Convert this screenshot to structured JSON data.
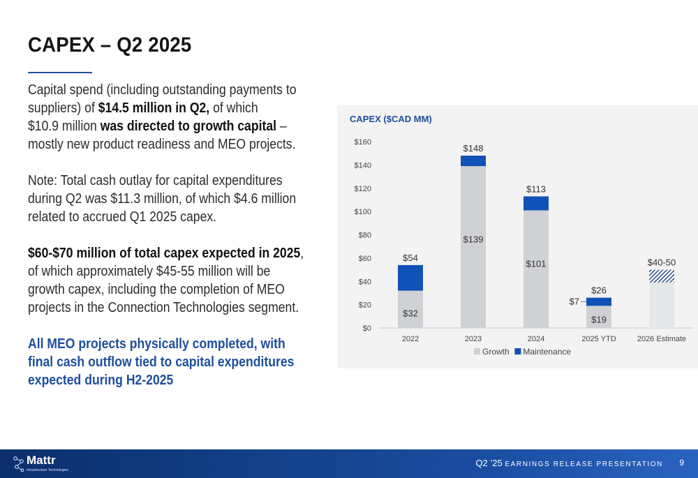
{
  "slide": {
    "title": "CAPEX – Q2 2025",
    "para1": {
      "a": "Capital spend (including outstanding payments to",
      "b": "suppliers) of ",
      "b_bold": "$14.5 million in Q2,",
      "b_end": " of which",
      "c": "$10.9 million ",
      "c_bold": "was directed to growth capital",
      "c_end": " –",
      "d": "mostly new product readiness and MEO projects."
    },
    "para2": [
      "Note: Total cash outlay for capital expenditures",
      "during Q2 was $11.3 million, of which $4.6 million",
      "related to accrued Q1 2025 capex."
    ],
    "para3": {
      "a_bold": "$60-$70 million of total capex expected in 2025",
      "a_end": ",",
      "rest": [
        "of which approximately $45-55 million will be",
        "growth capex, including the completion of MEO",
        "projects in the Connection Technologies segment."
      ]
    },
    "para4": [
      "All MEO projects physically completed, with",
      "final cash outflow tied to capital expenditures",
      "expected during H2-2025"
    ]
  },
  "chart_data": {
    "type": "bar",
    "stacked": true,
    "title": "CAPEX ($CAD MM)",
    "categories": [
      "2022",
      "2023",
      "2024",
      "2025 YTD",
      "2026 Estimate"
    ],
    "series": [
      {
        "name": "Growth",
        "color": "#cfd1d4",
        "values": [
          32,
          139,
          101,
          19,
          39
        ]
      },
      {
        "name": "Maintenance",
        "color": "#1152b8",
        "values": [
          22,
          9,
          12,
          7,
          11
        ]
      }
    ],
    "totals": [
      "$54",
      "$148",
      "$113",
      "$26",
      "$40-50"
    ],
    "growth_labels": [
      "$32",
      "$139",
      "$101",
      "$19",
      ""
    ],
    "maintenance_labels": [
      "",
      "",
      "",
      "$7",
      ""
    ],
    "estimate_category": "2026 Estimate",
    "ylim": [
      0,
      160
    ],
    "yticks": [
      "$0",
      "$20",
      "$40",
      "$60",
      "$80",
      "$100",
      "$120",
      "$140",
      "$160"
    ],
    "grid": false,
    "legend": "bottom"
  },
  "footer": {
    "logo_name": "Mattr",
    "logo_sub": "Infrastructure Technologies",
    "quarter": "Q2 ’25",
    "caption": "EARNINGS RELEASE PRESENTATION",
    "page": "9"
  }
}
